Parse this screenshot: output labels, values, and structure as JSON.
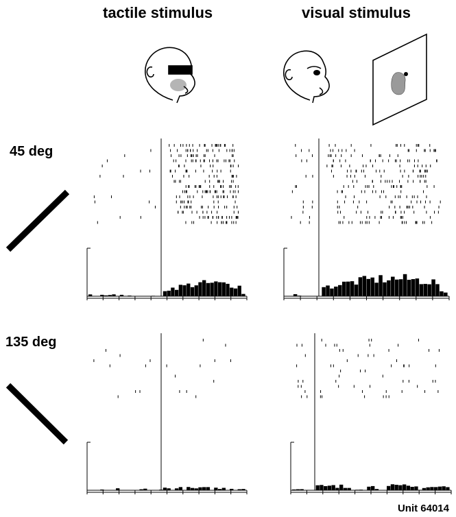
{
  "columns": {
    "tactile_title": "tactile stimulus",
    "visual_title": "visual stimulus"
  },
  "rows": {
    "row1_label": "45 deg",
    "row2_label": "135 deg"
  },
  "unit_label": "Unit 64014",
  "colors": {
    "ink": "#000000",
    "stimulus_spot": "#9a9a9a",
    "background": "#ffffff"
  },
  "icons": [
    "monkey-head-blindfolded-icon",
    "monkey-head-icon",
    "projection-screen-icon",
    "bar-orientation-45-icon",
    "bar-orientation-135-icon"
  ]
}
